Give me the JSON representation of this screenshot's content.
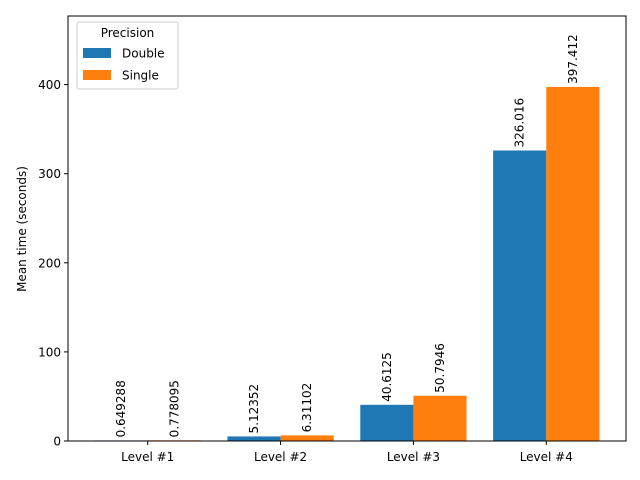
{
  "chart_data": {
    "type": "bar",
    "title": "",
    "xlabel": "",
    "ylabel": "Mean time (seconds)",
    "categories": [
      "Level #1",
      "Level #2",
      "Level #3",
      "Level #4"
    ],
    "series": [
      {
        "name": "Double",
        "color": "#1f77b4",
        "values": [
          0.649288,
          5.12352,
          40.6125,
          326.016
        ],
        "labels": [
          "0.649288",
          "5.12352",
          "40.6125",
          "326.016"
        ]
      },
      {
        "name": "Single",
        "color": "#ff7f0e",
        "values": [
          0.778095,
          6.31102,
          50.7946,
          397.412
        ],
        "labels": [
          "0.778095",
          "6.31102",
          "50.7946",
          "397.412"
        ]
      }
    ],
    "ylim": [
      0,
      477
    ],
    "yticks": [
      "0",
      "100",
      "200",
      "300",
      "400"
    ],
    "legend": {
      "title": "Precision",
      "placement": "top-left"
    },
    "grid": false
  }
}
